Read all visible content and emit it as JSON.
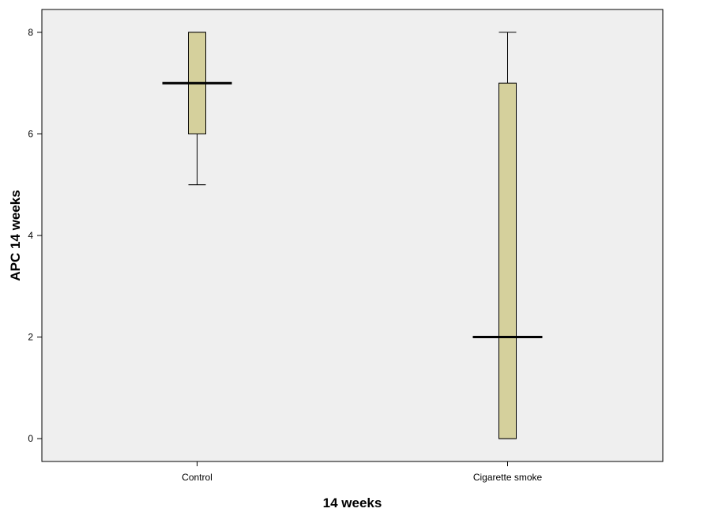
{
  "chart_data": {
    "type": "boxplot",
    "title": "",
    "xlabel": "14 weeks",
    "ylabel": "APC 14 weeks",
    "ylim": [
      -0.45,
      8.45
    ],
    "yticks": [
      0,
      2,
      4,
      6,
      8
    ],
    "grid": false,
    "colors": {
      "plot_background": "#efefef",
      "box_fill": "#d5d09c",
      "box_stroke": "#000000",
      "median": "#000000"
    },
    "categories": [
      "Control",
      "Cigarette smoke"
    ],
    "boxes": [
      {
        "category": "Control",
        "whisker_low": 5,
        "q1": 6,
        "median": 7,
        "q3": 8,
        "whisker_high": 8
      },
      {
        "category": "Cigarette smoke",
        "whisker_low": 0,
        "q1": 0,
        "median": 2,
        "q3": 7,
        "whisker_high": 8
      }
    ]
  }
}
